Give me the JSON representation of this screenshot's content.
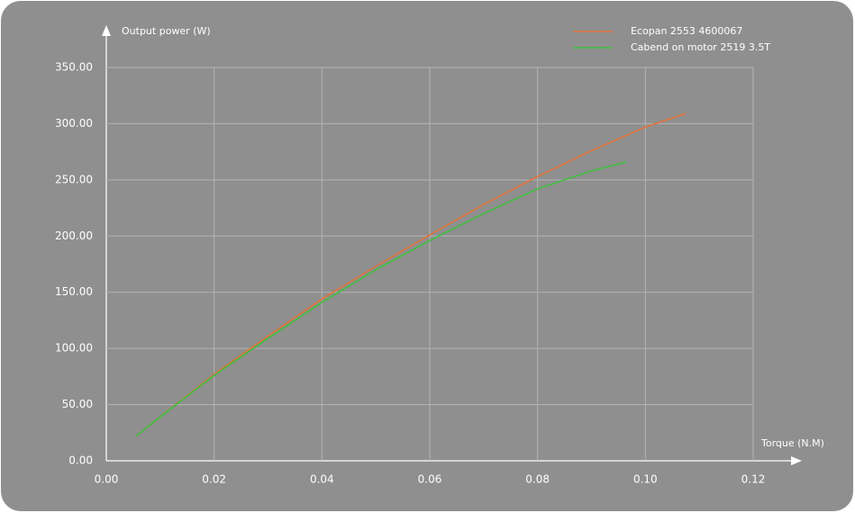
{
  "chart_data": {
    "type": "line",
    "y_label": "Output power (W)",
    "x_label": "Torque (N.M)",
    "xlim": [
      0,
      0.12
    ],
    "ylim": [
      0,
      350
    ],
    "xticks": [
      {
        "value": 0,
        "label": "0.00"
      },
      {
        "value": 0.02,
        "label": "0.02"
      },
      {
        "value": 0.04,
        "label": "0.04"
      },
      {
        "value": 0.06,
        "label": "0.06"
      },
      {
        "value": 0.08,
        "label": "0.08"
      },
      {
        "value": 0.1,
        "label": "0.10"
      },
      {
        "value": 0.12,
        "label": "0.12"
      }
    ],
    "yticks": [
      {
        "value": 0,
        "label": "0.00"
      },
      {
        "value": 50,
        "label": "50.00"
      },
      {
        "value": 100,
        "label": "100.00"
      },
      {
        "value": 150,
        "label": "150.00"
      },
      {
        "value": 200,
        "label": "200.00"
      },
      {
        "value": 250,
        "label": "250.00"
      },
      {
        "value": 300,
        "label": "300.00"
      },
      {
        "value": 350,
        "label": "350.00"
      }
    ],
    "grid": true,
    "series": [
      {
        "name": "Ecopan 2553 4600067",
        "color": "#e0733a",
        "x": [
          0.0055,
          0.01,
          0.02,
          0.03,
          0.04,
          0.05,
          0.06,
          0.07,
          0.08,
          0.09,
          0.1,
          0.1075
        ],
        "values": [
          22,
          39,
          77,
          111,
          144,
          173,
          201,
          228,
          253,
          276,
          297,
          309
        ]
      },
      {
        "name": "Cabend on motor 2519 3.5T",
        "color": "#3fbf3f",
        "x": [
          0.0055,
          0.01,
          0.02,
          0.03,
          0.04,
          0.05,
          0.06,
          0.07,
          0.08,
          0.09,
          0.0965
        ],
        "values": [
          22,
          39,
          76,
          109,
          141,
          170,
          196,
          220,
          242,
          258,
          266
        ]
      }
    ]
  }
}
